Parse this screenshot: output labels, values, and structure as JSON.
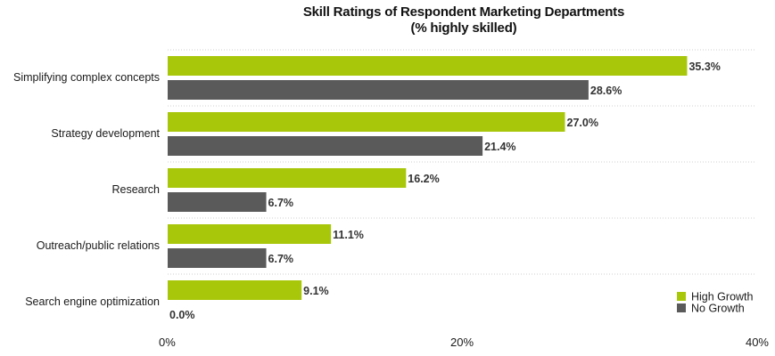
{
  "chart_data": {
    "type": "bar",
    "orientation": "horizontal",
    "title": "Skill Ratings of Respondent Marketing Departments",
    "subtitle": "(% highly skilled)",
    "categories": [
      "Simplifying complex concepts",
      "Strategy development",
      "Research",
      "Outreach/public relations",
      "Search engine optimization"
    ],
    "series": [
      {
        "name": "High Growth",
        "color": "#a8c70a",
        "values": [
          35.3,
          27.0,
          16.2,
          11.1,
          9.1
        ],
        "labels": [
          "35.3%",
          "27.0%",
          "16.2%",
          "11.1%",
          "9.1%"
        ]
      },
      {
        "name": "No Growth",
        "color": "#5a5a5a",
        "values": [
          28.6,
          21.4,
          6.7,
          6.7,
          0.0
        ],
        "labels": [
          "28.6%",
          "21.4%",
          "6.7%",
          "6.7%",
          "0.0%"
        ]
      }
    ],
    "xlim": [
      0,
      40
    ],
    "x_ticks": [
      0,
      20,
      40
    ],
    "x_tick_labels": [
      "0%",
      "20%",
      "40%"
    ],
    "grid": "dotted horizontal separators",
    "legend": "bottom-right"
  }
}
